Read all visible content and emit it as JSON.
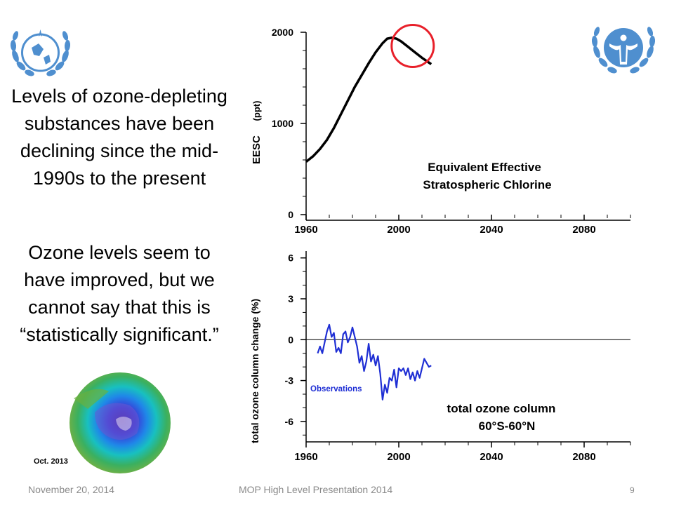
{
  "slide": {
    "text_block_1": "Levels of ozone-depleting substances have been declining since the mid-1990s to the present",
    "text_block_2": "Ozone levels seem to have improved, but we cannot say that this is “statistically significant.”",
    "globe_caption": "Oct. 2013",
    "footer_date": "November 20, 2014",
    "footer_title": "MOP High Level Presentation 2014",
    "page_number": "9",
    "logos": [
      "wmo-emblem",
      "unep-emblem"
    ]
  },
  "colors": {
    "highlight_circle": "#e8202a",
    "observations": "#1f2fd4",
    "line": "#000000",
    "footer": "#8a8a8a"
  },
  "chart_data": [
    {
      "type": "line",
      "title": "Equivalent Effective Stratospheric Chlorine",
      "ylabel": "EESC",
      "ylabel_unit": "(ppt)",
      "xlabel": "",
      "xlim": [
        1960,
        2100
      ],
      "ylim": [
        0,
        2000
      ],
      "x_ticks": [
        "1960",
        "2000",
        "2040",
        "2080"
      ],
      "y_ticks": [
        "0",
        "1000",
        "2000"
      ],
      "series": [
        {
          "x": [
            1960,
            1963,
            1966,
            1969,
            1972,
            1975,
            1978,
            1981,
            1984,
            1987,
            1990,
            1993,
            1995,
            1997,
            1999,
            2001,
            2004,
            2007,
            2010,
            2014
          ],
          "values": [
            580,
            640,
            720,
            820,
            950,
            1100,
            1250,
            1400,
            1530,
            1660,
            1780,
            1880,
            1930,
            1940,
            1930,
            1900,
            1840,
            1780,
            1720,
            1650
          ]
        }
      ],
      "annotation": "highlight circle around the post-peak decline (~1998–2016)"
    },
    {
      "type": "line",
      "title": "total ozone column 60°S-60°N",
      "ylabel": "total ozone column change (%)",
      "xlabel": "",
      "xlim": [
        1960,
        2100
      ],
      "ylim": [
        -7.5,
        6.5
      ],
      "x_ticks": [
        "1960",
        "2000",
        "2040",
        "2080"
      ],
      "y_ticks": [
        "6",
        "3",
        "0",
        "-3",
        "-6"
      ],
      "zero_line": true,
      "series": [
        {
          "name": "Observations",
          "x": [
            1965,
            1966,
            1967,
            1968,
            1969,
            1970,
            1971,
            1972,
            1973,
            1974,
            1975,
            1976,
            1977,
            1978,
            1979,
            1980,
            1981,
            1982,
            1983,
            1984,
            1985,
            1986,
            1987,
            1988,
            1989,
            1990,
            1991,
            1992,
            1993,
            1994,
            1995,
            1996,
            1997,
            1998,
            1999,
            2000,
            2001,
            2002,
            2003,
            2004,
            2005,
            2006,
            2007,
            2008,
            2009,
            2010,
            2011,
            2012,
            2013,
            2014
          ],
          "values": [
            -1.0,
            -0.5,
            -1.0,
            -0.2,
            0.6,
            1.1,
            0.2,
            0.5,
            -0.9,
            -0.6,
            -1.0,
            0.4,
            0.6,
            -0.2,
            0.2,
            0.9,
            0.2,
            -0.5,
            -1.7,
            -1.2,
            -2.3,
            -1.6,
            -0.3,
            -1.6,
            -1.1,
            -1.9,
            -1.2,
            -2.5,
            -4.4,
            -3.3,
            -3.9,
            -2.8,
            -3.0,
            -2.2,
            -3.5,
            -2.1,
            -2.3,
            -2.1,
            -2.6,
            -2.1,
            -2.9,
            -2.4,
            -3.0,
            -2.3,
            -2.8,
            -2.1,
            -1.4,
            -1.7,
            -2.0,
            -1.9
          ]
        }
      ]
    }
  ]
}
